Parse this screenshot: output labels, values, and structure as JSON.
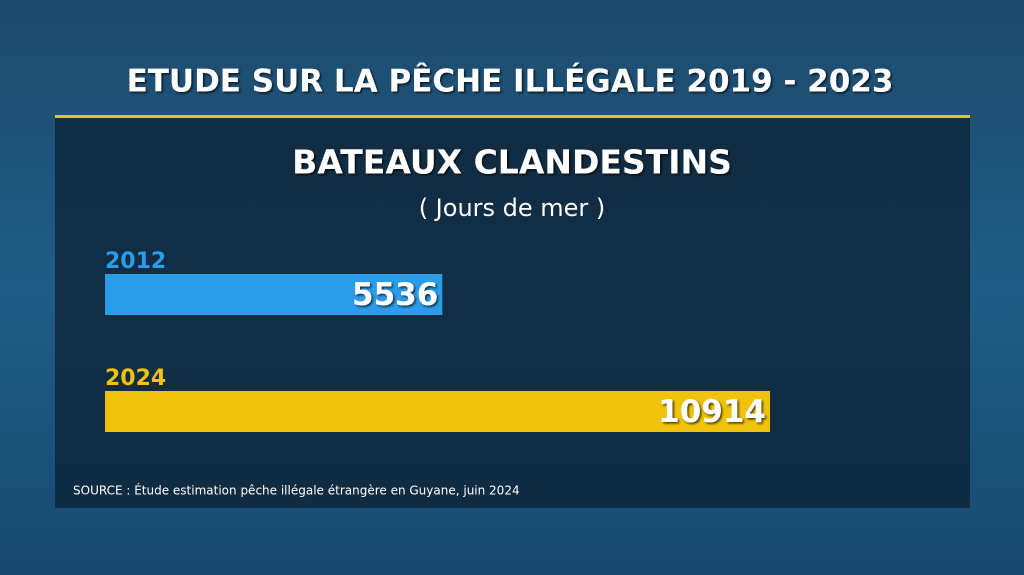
{
  "chart_data": {
    "type": "bar",
    "orientation": "horizontal",
    "title": "ETUDE SUR LA PÊCHE ILLÉGALE 2019 - 2023",
    "subtitle": "BATEAUX CLANDESTINS",
    "unit_label": "( Jours de mer )",
    "categories": [
      "2012",
      "2024"
    ],
    "values": [
      5536,
      10914
    ],
    "colors": [
      "#2b9cea",
      "#f0c20a"
    ],
    "source": "SOURCE : Étude estimation pêche illégale étrangère en Guyane, juin 2024"
  }
}
